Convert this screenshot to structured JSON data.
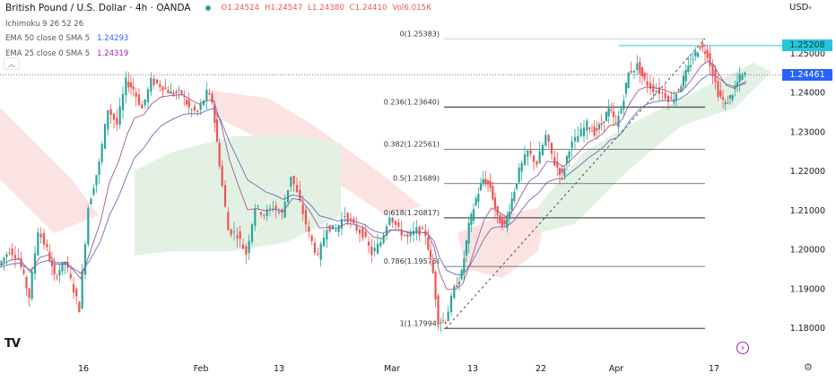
{
  "header": {
    "title": "British Pound / U.S. Dollar · 4h · OANDA",
    "status_color": "#26a69a",
    "ohlc": {
      "open": "O1.24524",
      "high": "H1.24547",
      "low": "L1.24380",
      "close": "C1.24410",
      "volume": "Vol6.015K"
    }
  },
  "indicators": [
    {
      "label": "Ichimoku 9 26 52 26",
      "value": ""
    },
    {
      "label": "EMA 50 close 0 SMA 5",
      "value": "1.24293",
      "color": "#2962ff"
    },
    {
      "label": "EMA 25 close 0 SMA 5",
      "value": "1.24319",
      "color": "#9c27b0"
    }
  ],
  "axis": {
    "currency": "USD",
    "currency_caret": "▾",
    "price_labels": [
      "1.25000",
      "1.24000",
      "1.23000",
      "1.22000",
      "1.21000",
      "1.20000",
      "1.19000",
      "1.18000"
    ],
    "time_labels": [
      "16",
      "Feb",
      "13",
      "Mar",
      "13",
      "22",
      "Apr",
      "17"
    ]
  },
  "price_tags": {
    "resistance": {
      "value": "1.25208",
      "color": "#26c6da"
    },
    "current": {
      "value": "1.24461",
      "color": "#2962ff"
    }
  },
  "branding": {
    "logo": "TV"
  },
  "chart_data": {
    "type": "candlestick",
    "title": "British Pound / U.S. Dollar · 4h · OANDA",
    "symbol": "GBPUSD",
    "timeframe": "4h",
    "ylim": [
      1.176,
      1.258
    ],
    "yticks": [
      1.18,
      1.19,
      1.2,
      1.21,
      1.22,
      1.23,
      1.24,
      1.25
    ],
    "xticks": [
      "16",
      "Feb",
      "13",
      "Mar",
      "13",
      "22",
      "Apr",
      "17"
    ],
    "grid": false,
    "last_price": 1.24461,
    "horizontal_line": 1.25208,
    "fibonacci": [
      {
        "level": "0",
        "price": 1.25383,
        "label": "0(1.25383)"
      },
      {
        "level": "0.236",
        "price": 1.2364,
        "label": "0.236(1.23640)"
      },
      {
        "level": "0.382",
        "price": 1.22561,
        "label": "0.382(1.22561)"
      },
      {
        "level": "0.5",
        "price": 1.21689,
        "label": "0.5(1.21689)"
      },
      {
        "level": "0.618",
        "price": 1.20817,
        "label": "0.618(1.20817)"
      },
      {
        "level": "0.786",
        "price": 1.19576,
        "label": "0.786(1.19576)"
      },
      {
        "level": "1",
        "price": 1.17994,
        "label": "1(1.17994)"
      }
    ],
    "close_path": [
      [
        0,
        1.196
      ],
      [
        12,
        1.2
      ],
      [
        22,
        1.198
      ],
      [
        34,
        1.188
      ],
      [
        44,
        1.205
      ],
      [
        54,
        1.2
      ],
      [
        62,
        1.193
      ],
      [
        74,
        1.197
      ],
      [
        90,
        1.185
      ],
      [
        100,
        1.211
      ],
      [
        112,
        1.222
      ],
      [
        122,
        1.236
      ],
      [
        132,
        1.232
      ],
      [
        142,
        1.243
      ],
      [
        150,
        1.241
      ],
      [
        160,
        1.236
      ],
      [
        170,
        1.243
      ],
      [
        180,
        1.242
      ],
      [
        192,
        1.24
      ],
      [
        204,
        1.24
      ],
      [
        212,
        1.236
      ],
      [
        222,
        1.235
      ],
      [
        232,
        1.24
      ],
      [
        238,
        1.238
      ],
      [
        246,
        1.222
      ],
      [
        256,
        1.205
      ],
      [
        266,
        1.204
      ],
      [
        276,
        1.199
      ],
      [
        286,
        1.211
      ],
      [
        296,
        1.209
      ],
      [
        306,
        1.211
      ],
      [
        316,
        1.209
      ],
      [
        326,
        1.219
      ],
      [
        336,
        1.212
      ],
      [
        346,
        1.204
      ],
      [
        356,
        1.198
      ],
      [
        366,
        1.206
      ],
      [
        376,
        1.205
      ],
      [
        386,
        1.209
      ],
      [
        396,
        1.206
      ],
      [
        406,
        1.204
      ],
      [
        416,
        1.199
      ],
      [
        426,
        1.202
      ],
      [
        436,
        1.209
      ],
      [
        446,
        1.205
      ],
      [
        456,
        1.203
      ],
      [
        466,
        1.205
      ],
      [
        476,
        1.204
      ],
      [
        484,
        1.194
      ],
      [
        490,
        1.182
      ],
      [
        498,
        1.182
      ],
      [
        508,
        1.19
      ],
      [
        516,
        1.194
      ],
      [
        524,
        1.206
      ],
      [
        532,
        1.213
      ],
      [
        540,
        1.218
      ],
      [
        548,
        1.216
      ],
      [
        556,
        1.208
      ],
      [
        564,
        1.206
      ],
      [
        572,
        1.213
      ],
      [
        580,
        1.22
      ],
      [
        590,
        1.225
      ],
      [
        600,
        1.222
      ],
      [
        610,
        1.229
      ],
      [
        620,
        1.222
      ],
      [
        628,
        1.219
      ],
      [
        636,
        1.226
      ],
      [
        646,
        1.229
      ],
      [
        656,
        1.232
      ],
      [
        664,
        1.23
      ],
      [
        672,
        1.232
      ],
      [
        680,
        1.236
      ],
      [
        688,
        1.232
      ],
      [
        694,
        1.236
      ],
      [
        702,
        1.245
      ],
      [
        712,
        1.247
      ],
      [
        720,
        1.243
      ],
      [
        730,
        1.241
      ],
      [
        740,
        1.24
      ],
      [
        750,
        1.238
      ],
      [
        758,
        1.241
      ],
      [
        766,
        1.245
      ],
      [
        774,
        1.249
      ],
      [
        782,
        1.252
      ],
      [
        790,
        1.25
      ],
      [
        796,
        1.245
      ],
      [
        802,
        1.24
      ],
      [
        810,
        1.237
      ],
      [
        818,
        1.24
      ],
      [
        826,
        1.244
      ],
      [
        832,
        1.2446
      ]
    ],
    "series": [
      {
        "name": "EMA 50",
        "color": "#2962ff",
        "last": 1.24293
      },
      {
        "name": "EMA 25",
        "color": "#9c27b0",
        "last": 1.24319
      },
      {
        "name": "Ichimoku 9 26 52 26",
        "color": "#a5d6a7"
      }
    ],
    "colors": {
      "up": "#26a69a",
      "down": "#ef5350",
      "ema50": "#6a6fb5",
      "ema25": "#9e5a8c",
      "cloud_up": "#e3f1e5",
      "cloud_down": "#fbe3e2",
      "fib_line": "#555555",
      "resistance": "#26c6da"
    }
  }
}
